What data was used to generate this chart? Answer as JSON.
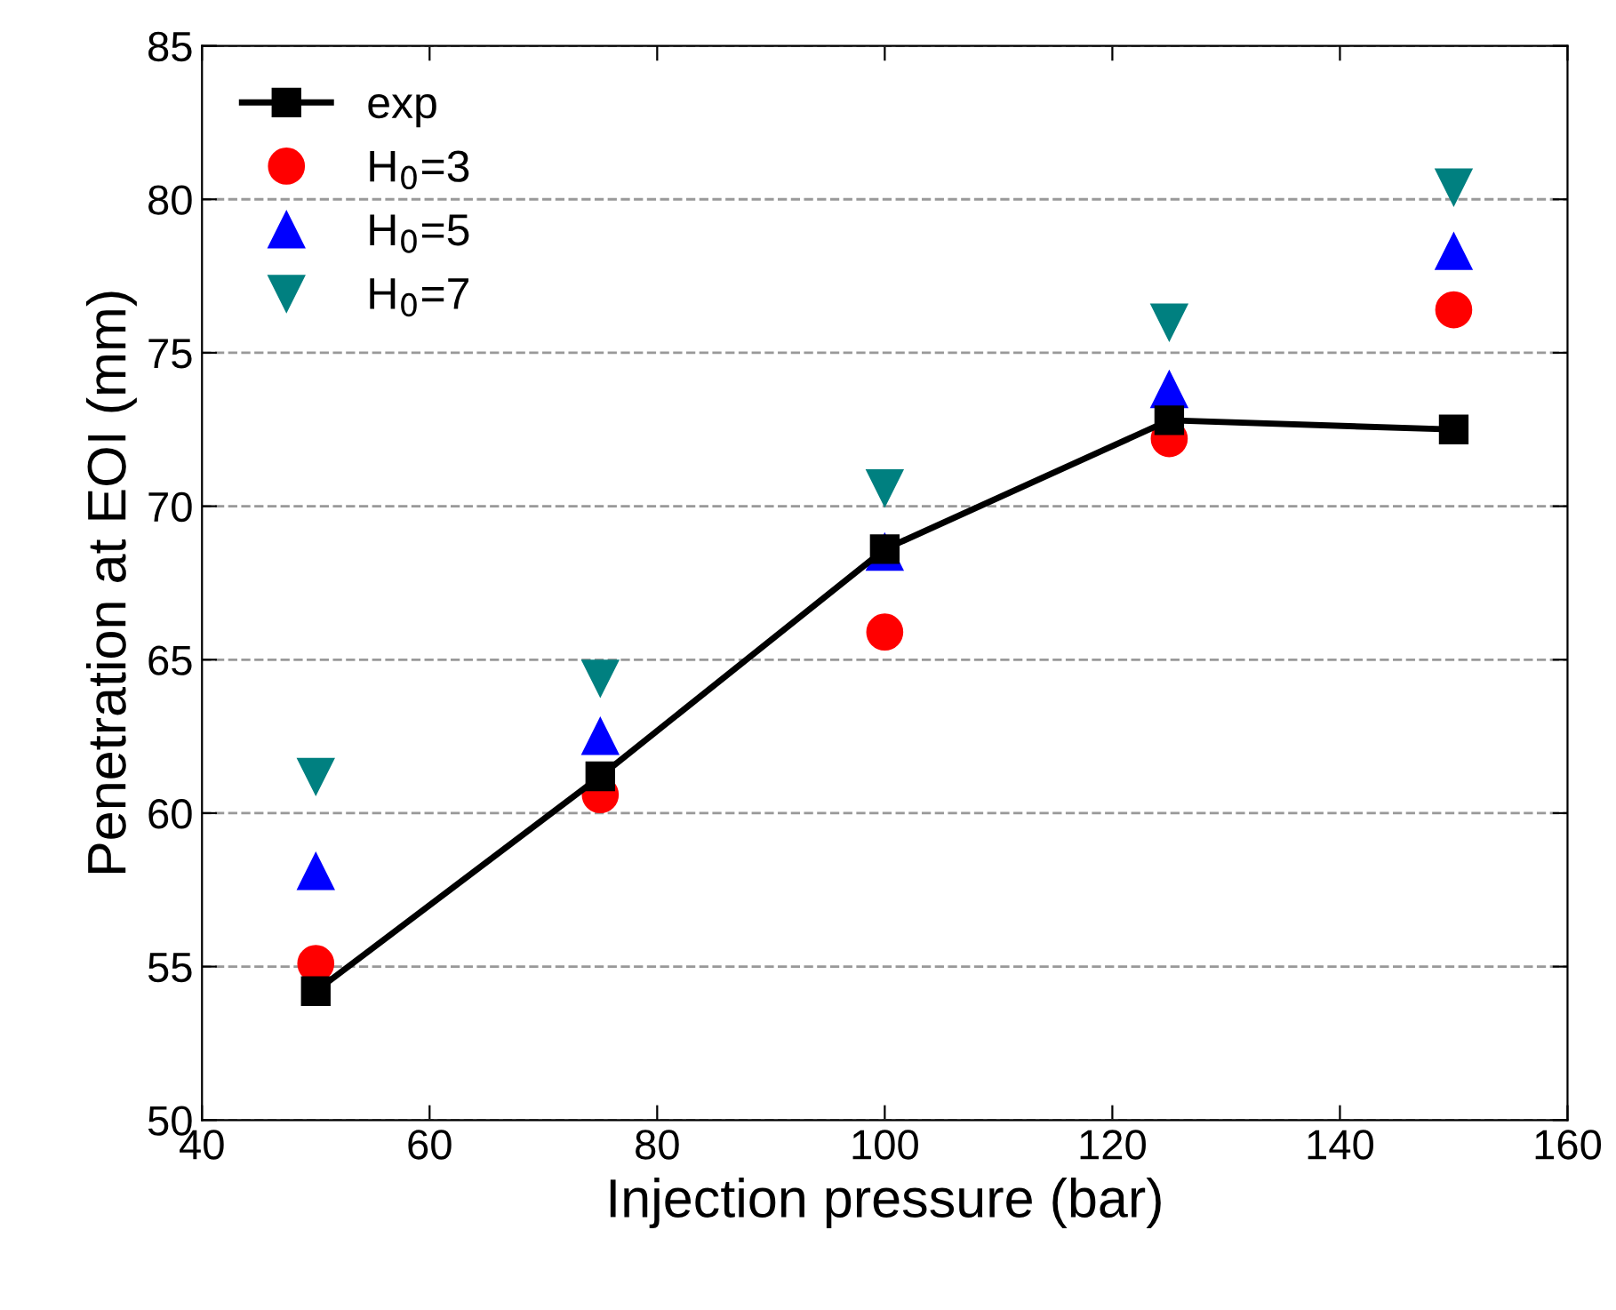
{
  "chart_data": {
    "type": "scatter",
    "xlabel": "Injection pressure (bar)",
    "ylabel": "Penetration at EOI (mm)",
    "x": [
      50,
      75,
      100,
      125,
      150
    ],
    "series": [
      {
        "name": "exp",
        "type": "line",
        "color": "#000000",
        "marker": "square",
        "line_style": "solid",
        "values": [
          54.2,
          61.2,
          68.6,
          72.8,
          72.5
        ]
      },
      {
        "name": "H$_{0}$=3",
        "color": "#ff0000",
        "marker": "circle",
        "values": [
          55.1,
          60.6,
          65.9,
          72.2,
          76.4
        ]
      },
      {
        "name": "H$_{0}$=5",
        "color": "#0000ff",
        "marker": "triangle",
        "values": [
          58.1,
          62.5,
          68.5,
          73.8,
          78.3
        ]
      },
      {
        "name": "H$_{0}$=7",
        "color": "#008080",
        "marker": "triangle_down",
        "values": [
          61.2,
          64.4,
          70.6,
          76.0,
          80.4
        ]
      }
    ],
    "xlim": [
      40,
      160
    ],
    "xticks": [
      40,
      60,
      80,
      100,
      120,
      140,
      160
    ],
    "ylim": [
      50,
      85
    ],
    "yticks": [
      50,
      55,
      60,
      65,
      70,
      75,
      80,
      85
    ],
    "grid": "y",
    "legend": "top left"
  }
}
